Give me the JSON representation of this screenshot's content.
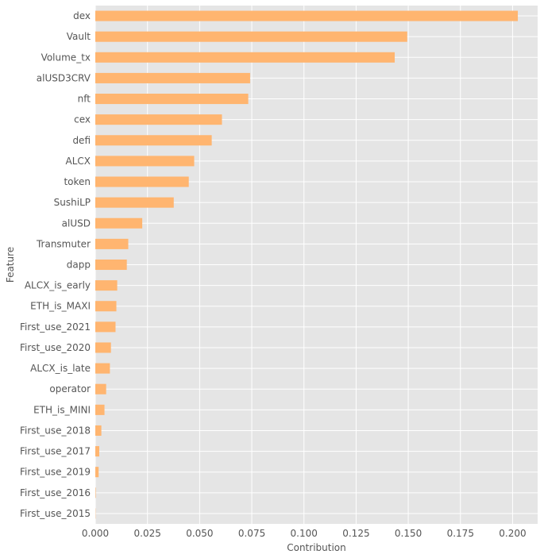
{
  "chart_data": {
    "type": "bar",
    "orientation": "horizontal",
    "xlabel": "Contribution",
    "ylabel": "Feature",
    "xlim": [
      0,
      0.212
    ],
    "xticks": [
      "0.000",
      "0.025",
      "0.050",
      "0.075",
      "0.100",
      "0.125",
      "0.150",
      "0.175",
      "0.200"
    ],
    "xtick_values": [
      0,
      0.025,
      0.05,
      0.075,
      0.1,
      0.125,
      0.15,
      0.175,
      0.2
    ],
    "grid": true,
    "bar_color": "#ffb570",
    "background_color": "#e5e5e5",
    "grid_color": "#ffffff",
    "categories": [
      "dex",
      "Vault",
      "Volume_tx",
      "alUSD3CRV",
      "nft",
      "cex",
      "defi",
      "ALCX",
      "token",
      "SushiLP",
      "alUSD",
      "Transmuter",
      "dapp",
      "ALCX_is_early",
      "ETH_is_MAXI",
      "First_use_2021",
      "First_use_2020",
      "ALCX_is_late",
      "operator",
      "ETH_is_MINI",
      "First_use_2018",
      "First_use_2017",
      "First_use_2019",
      "First_use_2016",
      "First_use_2015"
    ],
    "values": [
      0.2025,
      0.1495,
      0.1435,
      0.0742,
      0.0733,
      0.0607,
      0.0558,
      0.0474,
      0.0448,
      0.0376,
      0.0225,
      0.0158,
      0.0151,
      0.0105,
      0.0101,
      0.0097,
      0.0075,
      0.007,
      0.0052,
      0.0044,
      0.0029,
      0.0019,
      0.0016,
      0.0002,
      0.0001
    ]
  }
}
